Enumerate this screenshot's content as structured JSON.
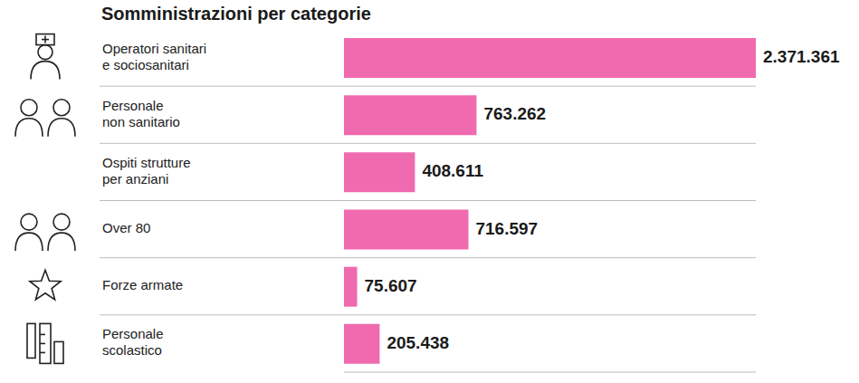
{
  "chart_data": {
    "type": "bar",
    "title": "Somministrazioni per categorie",
    "orientation": "horizontal",
    "categories": [
      "Operatori sanitari e sociosanitari",
      "Personale non sanitario",
      "Ospiti strutture per anziani",
      "Over 80",
      "Forze armate",
      "Personale scolastico"
    ],
    "values": [
      2371361,
      763262,
      408611,
      716597,
      75607,
      205438
    ],
    "value_labels": [
      "2.371.361",
      "763.262",
      "408.611",
      "716.597",
      "75.607",
      "205.438"
    ],
    "color": "#f06aaf",
    "xlim": [
      0,
      2371361
    ],
    "data_labels": true,
    "tick_labels": "y",
    "grid": false
  }
}
